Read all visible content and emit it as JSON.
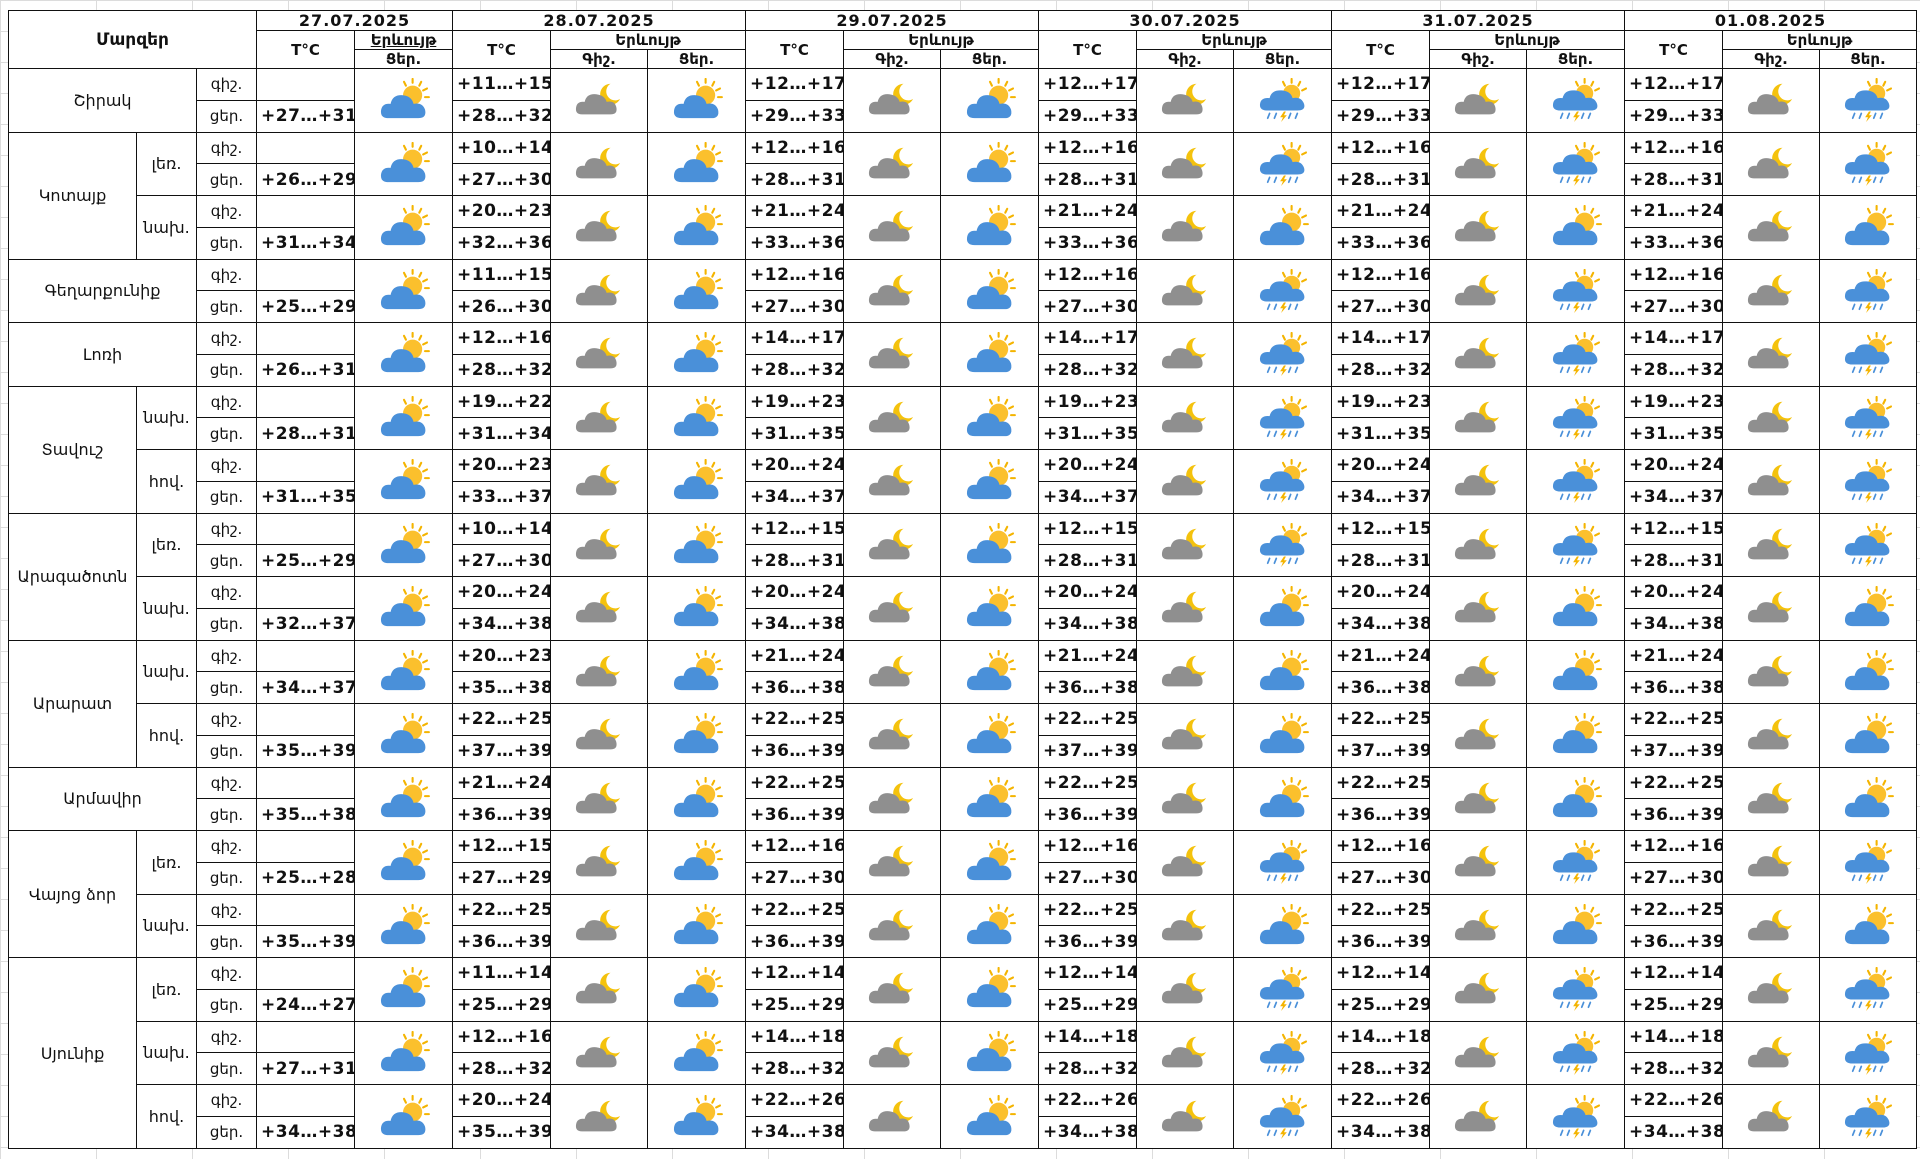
{
  "header": {
    "regions_label": "Մարզեր",
    "temp_label": "T°C",
    "phenomenon_label": "Երևույթ",
    "night_label": "Գիշ.",
    "day_label": "Ցեր.",
    "dates": [
      "27.07.2025",
      "28.07.2025",
      "29.07.2025",
      "30.07.2025",
      "31.07.2025",
      "01.08.2025"
    ]
  },
  "legend_icons": {
    "sunny_cloud": "sun-behind-cloud (blue cloud, yellow sun)",
    "night_cloud": "moon-behind-cloud (grey cloud, yellow moon)",
    "storm_cloud": "sun-behind-cloud-with-rain-and-lightning"
  },
  "regions": [
    {
      "name": "Շիրակ",
      "subs": [
        {
          "sub": "",
          "rows": [
            {
              "tod": "գիշ.",
              "temps": [
                "",
                "+11…+15",
                "+12…+17",
                "+12…+17",
                "+12…+17",
                "+12…+17"
              ]
            },
            {
              "tod": "ցեր.",
              "temps": [
                "+27…+31",
                "+28…+32",
                "+29…+33",
                "+29…+33",
                "+29…+33",
                "+29…+33"
              ]
            }
          ],
          "icons": [
            "sun",
            "night",
            "sun",
            "night",
            "sun",
            "night",
            "storm",
            "night",
            "storm",
            "night",
            "storm"
          ]
        }
      ]
    },
    {
      "name": "Կոտայք",
      "subs": [
        {
          "sub": "լեռ.",
          "rows": [
            {
              "tod": "գիշ.",
              "temps": [
                "",
                "+10…+14",
                "+12…+16",
                "+12…+16",
                "+12…+16",
                "+12…+16"
              ]
            },
            {
              "tod": "ցեր.",
              "temps": [
                "+26…+29",
                "+27…+30",
                "+28…+31",
                "+28…+31",
                "+28…+31",
                "+28…+31"
              ]
            }
          ],
          "icons": [
            "sun",
            "night",
            "sun",
            "night",
            "sun",
            "night",
            "storm",
            "night",
            "storm",
            "night",
            "storm"
          ]
        },
        {
          "sub": "նախ.",
          "rows": [
            {
              "tod": "գիշ.",
              "temps": [
                "",
                "+20…+23",
                "+21…+24",
                "+21…+24",
                "+21…+24",
                "+21…+24"
              ]
            },
            {
              "tod": "ցեր.",
              "temps": [
                "+31…+34",
                "+32…+36",
                "+33…+36",
                "+33…+36",
                "+33…+36",
                "+33…+36"
              ]
            }
          ],
          "icons": [
            "sun",
            "night",
            "sun",
            "night",
            "sun",
            "night",
            "sun",
            "night",
            "sun",
            "night",
            "sun"
          ]
        }
      ]
    },
    {
      "name": "Գեղարքունիք",
      "subs": [
        {
          "sub": "",
          "rows": [
            {
              "tod": "գիշ.",
              "temps": [
                "",
                "+11…+15",
                "+12…+16",
                "+12…+16",
                "+12…+16",
                "+12…+16"
              ]
            },
            {
              "tod": "ցեր.",
              "temps": [
                "+25…+29",
                "+26…+30",
                "+27…+30",
                "+27…+30",
                "+27…+30",
                "+27…+30"
              ]
            }
          ],
          "icons": [
            "sun",
            "night",
            "sun",
            "night",
            "sun",
            "night",
            "storm",
            "night",
            "storm",
            "night",
            "storm"
          ]
        }
      ]
    },
    {
      "name": "Լոռի",
      "subs": [
        {
          "sub": "",
          "rows": [
            {
              "tod": "գիշ.",
              "temps": [
                "",
                "+12…+16",
                "+14…+17",
                "+14…+17",
                "+14…+17",
                "+14…+17"
              ]
            },
            {
              "tod": "ցեր.",
              "temps": [
                "+26…+31",
                "+28…+32",
                "+28…+32",
                "+28…+32",
                "+28…+32",
                "+28…+32"
              ]
            }
          ],
          "icons": [
            "sun",
            "night",
            "sun",
            "night",
            "sun",
            "night",
            "storm",
            "night",
            "storm",
            "night",
            "storm"
          ]
        }
      ]
    },
    {
      "name": "Տավուշ",
      "subs": [
        {
          "sub": "նախ.",
          "rows": [
            {
              "tod": "գիշ.",
              "temps": [
                "",
                "+19…+22",
                "+19…+23",
                "+19…+23",
                "+19…+23",
                "+19…+23"
              ]
            },
            {
              "tod": "ցեր.",
              "temps": [
                "+28…+31",
                "+31…+34",
                "+31…+35",
                "+31…+35",
                "+31…+35",
                "+31…+35"
              ]
            }
          ],
          "icons": [
            "sun",
            "night",
            "sun",
            "night",
            "sun",
            "night",
            "storm",
            "night",
            "storm",
            "night",
            "storm"
          ]
        },
        {
          "sub": "հով.",
          "rows": [
            {
              "tod": "գիշ.",
              "temps": [
                "",
                "+20…+23",
                "+20…+24",
                "+20…+24",
                "+20…+24",
                "+20…+24"
              ]
            },
            {
              "tod": "ցեր.",
              "temps": [
                "+31…+35",
                "+33…+37",
                "+34…+37",
                "+34…+37",
                "+34…+37",
                "+34…+37"
              ]
            }
          ],
          "icons": [
            "sun",
            "night",
            "sun",
            "night",
            "sun",
            "night",
            "storm",
            "night",
            "storm",
            "night",
            "storm"
          ]
        }
      ]
    },
    {
      "name": "Արագածոտն",
      "subs": [
        {
          "sub": "լեռ.",
          "rows": [
            {
              "tod": "գիշ.",
              "temps": [
                "",
                "+10…+14",
                "+12…+15",
                "+12…+15",
                "+12…+15",
                "+12…+15"
              ]
            },
            {
              "tod": "ցեր.",
              "temps": [
                "+25…+29",
                "+27…+30",
                "+28…+31",
                "+28…+31",
                "+28…+31",
                "+28…+31"
              ]
            }
          ],
          "icons": [
            "sun",
            "night",
            "sun",
            "night",
            "sun",
            "night",
            "storm",
            "night",
            "storm",
            "night",
            "storm"
          ]
        },
        {
          "sub": "նախ.",
          "rows": [
            {
              "tod": "գիշ.",
              "temps": [
                "",
                "+20…+24",
                "+20…+24",
                "+20…+24",
                "+20…+24",
                "+20…+24"
              ]
            },
            {
              "tod": "ցեր.",
              "temps": [
                "+32…+37",
                "+34…+38",
                "+34…+38",
                "+34…+38",
                "+34…+38",
                "+34…+38"
              ]
            }
          ],
          "icons": [
            "sun",
            "night",
            "sun",
            "night",
            "sun",
            "night",
            "sun",
            "night",
            "sun",
            "night",
            "sun"
          ]
        }
      ]
    },
    {
      "name": "Արարատ",
      "subs": [
        {
          "sub": "նախ.",
          "rows": [
            {
              "tod": "գիշ.",
              "temps": [
                "",
                "+20…+23",
                "+21…+24",
                "+21…+24",
                "+21…+24",
                "+21…+24"
              ]
            },
            {
              "tod": "ցեր.",
              "temps": [
                "+34…+37",
                "+35…+38",
                "+36…+38",
                "+36…+38",
                "+36…+38",
                "+36…+38"
              ]
            }
          ],
          "icons": [
            "sun",
            "night",
            "sun",
            "night",
            "sun",
            "night",
            "sun",
            "night",
            "sun",
            "night",
            "sun"
          ]
        },
        {
          "sub": "հով.",
          "rows": [
            {
              "tod": "գիշ.",
              "temps": [
                "",
                "+22…+25",
                "+22…+25",
                "+22…+25",
                "+22…+25",
                "+22…+25"
              ]
            },
            {
              "tod": "ցեր.",
              "temps": [
                "+35…+39",
                "+37…+39",
                "+36…+39",
                "+37…+39",
                "+37…+39",
                "+37…+39"
              ]
            }
          ],
          "icons": [
            "sun",
            "night",
            "sun",
            "night",
            "sun",
            "night",
            "sun",
            "night",
            "sun",
            "night",
            "sun"
          ]
        }
      ]
    },
    {
      "name": "Արմավիր",
      "subs": [
        {
          "sub": "",
          "rows": [
            {
              "tod": "գիշ.",
              "temps": [
                "",
                "+21…+24",
                "+22…+25",
                "+22…+25",
                "+22…+25",
                "+22…+25"
              ]
            },
            {
              "tod": "ցեր.",
              "temps": [
                "+35…+38",
                "+36…+39",
                "+36…+39",
                "+36…+39",
                "+36…+39",
                "+36…+39"
              ]
            }
          ],
          "icons": [
            "sun",
            "night",
            "sun",
            "night",
            "sun",
            "night",
            "sun",
            "night",
            "sun",
            "night",
            "sun"
          ]
        }
      ]
    },
    {
      "name": "Վայոց ձոր",
      "subs": [
        {
          "sub": "լեռ.",
          "rows": [
            {
              "tod": "գիշ.",
              "temps": [
                "",
                "+12…+15",
                "+12…+16",
                "+12…+16",
                "+12…+16",
                "+12…+16"
              ]
            },
            {
              "tod": "ցեր.",
              "temps": [
                "+25…+28",
                "+27…+29",
                "+27…+30",
                "+27…+30",
                "+27…+30",
                "+27…+30"
              ]
            }
          ],
          "icons": [
            "sun",
            "night",
            "sun",
            "night",
            "sun",
            "night",
            "storm",
            "night",
            "storm",
            "night",
            "storm"
          ]
        },
        {
          "sub": "նախ.",
          "rows": [
            {
              "tod": "գիշ.",
              "temps": [
                "",
                "+22…+25",
                "+22…+25",
                "+22…+25",
                "+22…+25",
                "+22…+25"
              ]
            },
            {
              "tod": "ցեր.",
              "temps": [
                "+35…+39",
                "+36…+39",
                "+36…+39",
                "+36…+39",
                "+36…+39",
                "+36…+39"
              ]
            }
          ],
          "icons": [
            "sun",
            "night",
            "sun",
            "night",
            "sun",
            "night",
            "sun",
            "night",
            "sun",
            "night",
            "sun"
          ]
        }
      ]
    },
    {
      "name": "Սյունիք",
      "subs": [
        {
          "sub": "լեռ.",
          "rows": [
            {
              "tod": "գիշ.",
              "temps": [
                "",
                "+11…+14",
                "+12…+14",
                "+12…+14",
                "+12…+14",
                "+12…+14"
              ]
            },
            {
              "tod": "ցեր.",
              "temps": [
                "+24…+27",
                "+25…+29",
                "+25…+29",
                "+25…+29",
                "+25…+29",
                "+25…+29"
              ]
            }
          ],
          "icons": [
            "sun",
            "night",
            "sun",
            "night",
            "sun",
            "night",
            "storm",
            "night",
            "storm",
            "night",
            "storm"
          ]
        },
        {
          "sub": "նախ.",
          "rows": [
            {
              "tod": "գիշ.",
              "temps": [
                "",
                "+12…+16",
                "+14…+18",
                "+14…+18",
                "+14…+18",
                "+14…+18"
              ]
            },
            {
              "tod": "ցեր.",
              "temps": [
                "+27…+31",
                "+28…+32",
                "+28…+32",
                "+28…+32",
                "+28…+32",
                "+28…+32"
              ]
            }
          ],
          "icons": [
            "sun",
            "night",
            "sun",
            "night",
            "sun",
            "night",
            "storm",
            "night",
            "storm",
            "night",
            "storm"
          ]
        },
        {
          "sub": "հով.",
          "rows": [
            {
              "tod": "գիշ.",
              "temps": [
                "",
                "+20…+24",
                "+22…+26",
                "+22…+26",
                "+22…+26",
                "+22…+26"
              ]
            },
            {
              "tod": "ցեր.",
              "temps": [
                "+34…+38",
                "+35…+39",
                "+34…+38",
                "+34…+38",
                "+34…+38",
                "+34…+38"
              ]
            }
          ],
          "icons": [
            "sun",
            "night",
            "sun",
            "night",
            "sun",
            "night",
            "storm",
            "night",
            "storm",
            "night",
            "storm"
          ]
        }
      ]
    }
  ]
}
